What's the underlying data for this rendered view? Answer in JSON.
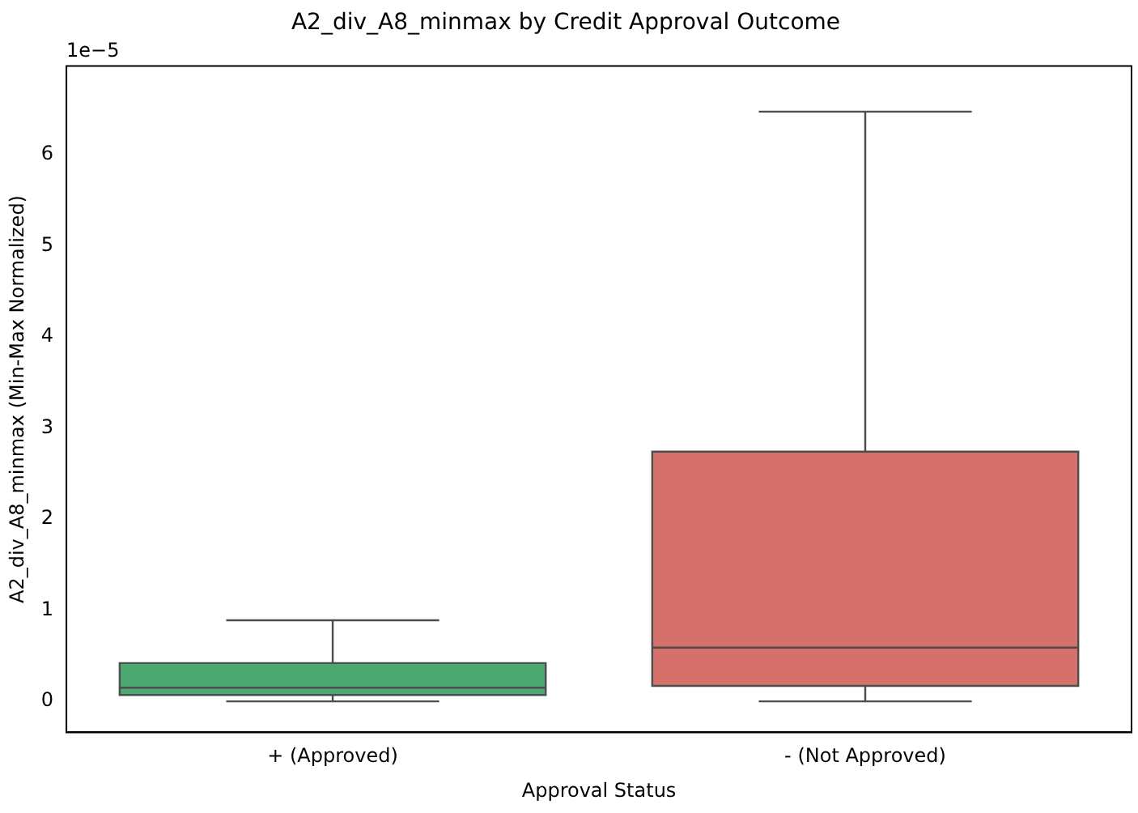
{
  "chart_data": {
    "type": "box",
    "title": "A2_div_A8_minmax by Credit Approval Outcome",
    "xlabel": "Approval Status",
    "ylabel": "A2_div_A8_minmax (Min-Max Normalized)",
    "categories": [
      "+ (Approved)",
      "- (Not Approved)"
    ],
    "colors": [
      "#4aa870",
      "#d5706a"
    ],
    "boxes": [
      {
        "low": 0,
        "q1": 0.07,
        "median": 0.15,
        "q3": 0.42,
        "high": 0.89
      },
      {
        "low": 0,
        "q1": 0.17,
        "median": 0.59,
        "q3": 2.74,
        "high": 6.47
      }
    ],
    "ylim": [
      -0.34,
      6.97
    ],
    "yticks": [
      0,
      1,
      2,
      3,
      4,
      5,
      6
    ],
    "annotations": [
      "1e−5"
    ]
  }
}
